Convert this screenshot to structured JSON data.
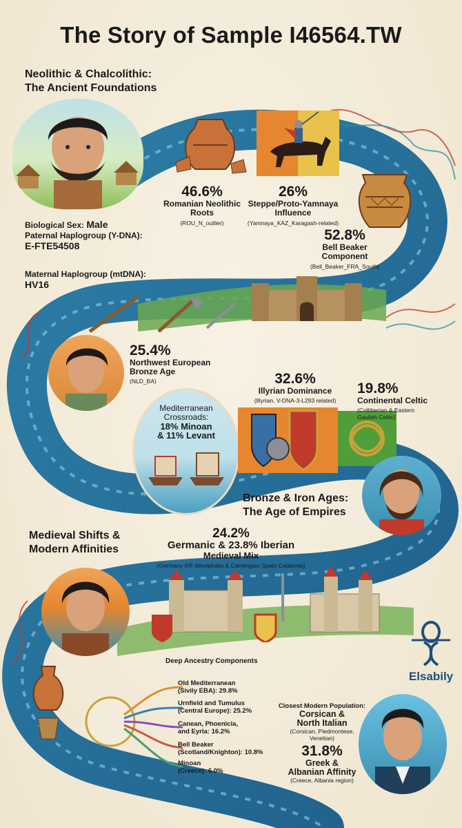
{
  "title": "The Story of Sample I46564.TW",
  "section1": {
    "heading_line1": "Neolithic & Chalcolithic:",
    "heading_line2": "The Ancient Foundations"
  },
  "romanian": {
    "pct": "46.6%",
    "label1": "Romanian Neolithic",
    "label2": "Roots",
    "sub": "(ROU_N_outlier)"
  },
  "steppe": {
    "pct": "26%",
    "label1": "Steppe/Proto-Yamnaya",
    "label2": "Influence",
    "sub": "(Yamnaya_KAZ_Karagash-related)"
  },
  "beaker": {
    "pct": "52.8%",
    "label1": "Bell Beaker",
    "label2": "Component",
    "sub": "(Bell_Beaker_FRA_South)"
  },
  "bio": {
    "sex_label": "Biological Sex: ",
    "sex_value": "Male",
    "ydna_label": "Paternal Haplogroup (Y-DNA):",
    "ydna_value": "E-FTE54508",
    "mtdna_label": "Maternal Haplogroup (mtDNA):",
    "mtdna_value": "HV16"
  },
  "nw_europe": {
    "pct": "25.4%",
    "label1": "Northwest European",
    "label2": "Bronze Age",
    "sub": "(NLD_BA)"
  },
  "mediterranean": {
    "line1": "Mediterranean",
    "line2": "Crossroads:",
    "line3": "18% Minoan",
    "line4": "& 11% Levant"
  },
  "illyrian": {
    "pct": "32.6%",
    "label1": "Illyrian Dominance",
    "sub": "(Illyrian, V-DNA-3-L293 related)"
  },
  "celtic": {
    "pct": "19.8%",
    "label1": "Continental Celtic",
    "sub1": "(Coltiberian & Eastern",
    "sub2": "Gaulish Celtic)"
  },
  "section2": {
    "heading_line1": "Bronze & Iron Ages:",
    "heading_line2": "The Age of Empires"
  },
  "section3": {
    "heading_line1": "Medieval Shifts &",
    "heading_line2": "Modern Affinities"
  },
  "germanic": {
    "line1": "24.2%",
    "line1b": "Germanic & 23.8% Iberian",
    "line2": "Medieval Mix",
    "sub": "(Germany KR-Westphalia & Camlingian Spain Catalonia)"
  },
  "deep": {
    "title": "Deep Ancestry Components",
    "items": [
      {
        "l1": "Old Mediterranean",
        "l2": "(Sivily EBA): 29.8%"
      },
      {
        "l1": "Urnfield and Tumulus",
        "l2": "(Central Europe): 25.2%"
      },
      {
        "l1": "Canean, Phoenicia,",
        "l2": "and Eyrla: 16.2%"
      },
      {
        "l1": "Bell Beaker",
        "l2": "(Scotland/Knighton): 10.8%"
      },
      {
        "l1": "Minoan",
        "l2": "(Creece): 6.0%"
      }
    ],
    "colors": [
      "#e0902e",
      "#3a7fb5",
      "#8a4fb0",
      "#c85a3a",
      "#4a9e6e"
    ]
  },
  "closest": {
    "label": "Closest Modern Population:",
    "pop1": "Corsican &",
    "pop2": "North Italian",
    "sub1": "(Corsican, Piedmontese,",
    "sub2": "Venetian)",
    "pct": "31.8%",
    "aff1": "Greek &",
    "aff2": "Albanian Affinity",
    "aff_sub": "(Creece, Albania region)"
  },
  "brand": "Elsabily",
  "colors": {
    "teal": "#2f8fa6",
    "river": "#2b6e9e",
    "orange": "#e6862e",
    "green": "#4f9e3a",
    "cream": "#f3ecdb",
    "red": "#c0392b"
  }
}
